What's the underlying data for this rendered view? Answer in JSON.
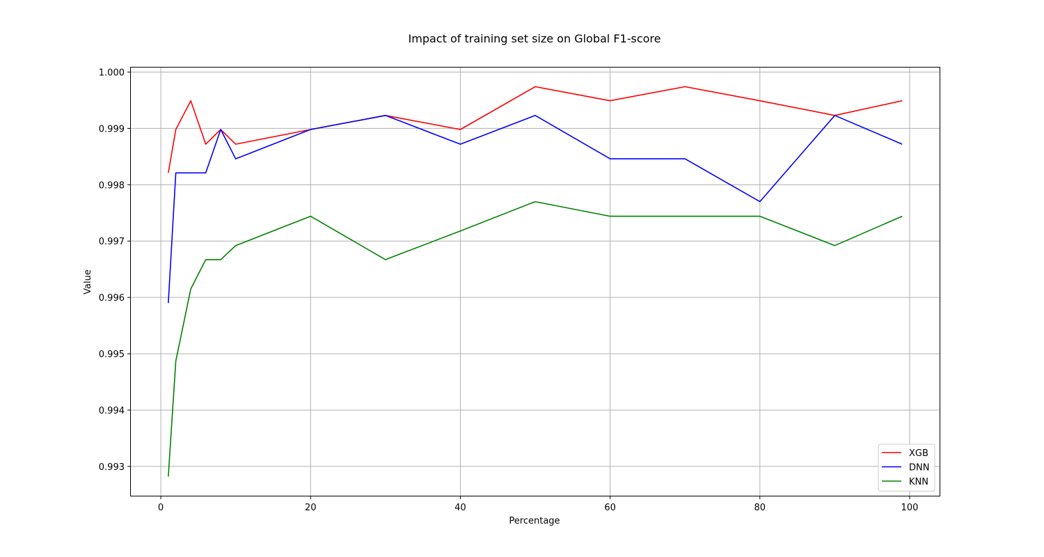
{
  "chart_data": {
    "type": "line",
    "title": "Impact of training set size on Global F1-score",
    "xlabel": "Percentage",
    "ylabel": "Value",
    "xlim": [
      -4,
      104
    ],
    "ylim": [
      0.99248,
      1.00008
    ],
    "xticks": [
      0,
      20,
      40,
      60,
      80,
      100
    ],
    "xtick_labels": [
      "0",
      "20",
      "40",
      "60",
      "80",
      "100"
    ],
    "yticks": [
      0.993,
      0.994,
      0.995,
      0.996,
      0.997,
      0.998,
      0.999,
      1.0
    ],
    "ytick_labels": [
      "0.993",
      "0.994",
      "0.995",
      "0.996",
      "0.997",
      "0.998",
      "0.999",
      "1.000"
    ],
    "grid": true,
    "legend_position": "bottom-right",
    "x": [
      1,
      2,
      4,
      6,
      8,
      10,
      20,
      30,
      40,
      50,
      60,
      70,
      80,
      90,
      99
    ],
    "series": [
      {
        "name": "XGB",
        "color": "#ff0000",
        "values": [
          0.99821,
          0.99898,
          0.99949,
          0.99872,
          0.99898,
          0.99872,
          0.99898,
          0.99923,
          0.99898,
          0.99974,
          0.99949,
          0.99974,
          0.99949,
          0.99923,
          0.99949
        ]
      },
      {
        "name": "DNN",
        "color": "#0000ff",
        "values": [
          0.9959,
          0.99821,
          0.99821,
          0.99821,
          0.99898,
          0.99846,
          0.99898,
          0.99923,
          0.99872,
          0.99923,
          0.99846,
          0.99846,
          0.9977,
          0.99923,
          0.99872
        ]
      },
      {
        "name": "KNN",
        "color": "#008000",
        "values": [
          0.99282,
          0.99487,
          0.99615,
          0.99667,
          0.99667,
          0.99692,
          0.99744,
          0.99667,
          0.99718,
          0.9977,
          0.99744,
          0.99744,
          0.99744,
          0.99692,
          0.99744
        ]
      }
    ]
  }
}
